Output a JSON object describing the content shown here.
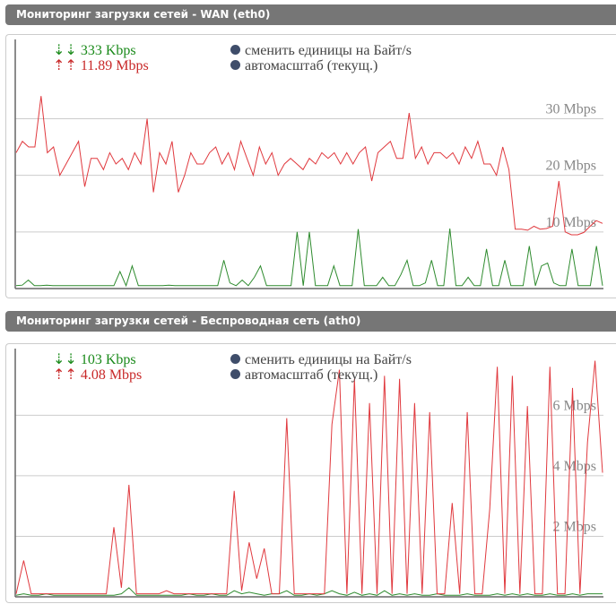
{
  "graphs": [
    {
      "title": "Мониторинг загрузки сетей - WAN (eth0)",
      "down_arrow": "⇣⇣",
      "down": "333 Kbps",
      "up_arrow": "⇡⇡",
      "up": "11.89 Mbps",
      "opt_units": "сменить единицы на Байт/s",
      "opt_scale": "автомасштаб (текущ.)",
      "grid": [
        "30 Mbps",
        "20 Mbps",
        "10 Mbps"
      ],
      "grid_values": [
        30,
        20,
        10
      ],
      "ymax": 44,
      "colors": {
        "up": "#e0393e",
        "down": "#2e8b2e"
      },
      "up_series": [
        24,
        26,
        25,
        25,
        34,
        24,
        25,
        20,
        22,
        24,
        26,
        18,
        23,
        23,
        21,
        24,
        22,
        23,
        21,
        24,
        22,
        30,
        17,
        24,
        22,
        26,
        17,
        20,
        24,
        22,
        22,
        24,
        25,
        22,
        24,
        21,
        26,
        23,
        20,
        25,
        22,
        24,
        20,
        22,
        23,
        22,
        21,
        23,
        22,
        24,
        23,
        24,
        22,
        24,
        22,
        24,
        25,
        19,
        24,
        25,
        26,
        23,
        23,
        31,
        23,
        25,
        22,
        24,
        24,
        23,
        24,
        22,
        25,
        23,
        26,
        22,
        22,
        20,
        25,
        21,
        10.5,
        10.5,
        10.3,
        11,
        10.5,
        10.6,
        11,
        19,
        10,
        9.5,
        9.5,
        9.9,
        11,
        12,
        11.5
      ],
      "down_series": [
        0.5,
        0.6,
        1.5,
        0.5,
        0.5,
        0.6,
        0.5,
        0.5,
        0.5,
        0.5,
        0.5,
        0.5,
        0.5,
        0.5,
        0.5,
        0.5,
        0.5,
        3,
        0.5,
        4,
        0.5,
        0.5,
        0.5,
        0.5,
        0.5,
        0.6,
        0.5,
        0.5,
        0.5,
        0.5,
        0.5,
        0.5,
        0.5,
        0.5,
        5,
        1,
        0.5,
        1.5,
        0.5,
        2,
        4,
        0.5,
        0.5,
        0.5,
        0.5,
        0.5,
        10,
        0.5,
        10,
        0.5,
        0.5,
        0.5,
        4,
        0.5,
        0.5,
        0.5,
        10.5,
        0.5,
        0.5,
        0.5,
        2,
        0.5,
        0.5,
        2.5,
        5,
        0.5,
        0.5,
        1,
        5,
        0.5,
        0.5,
        10.6,
        0.5,
        0.5,
        2,
        0.5,
        0.5,
        7,
        0.5,
        0.5,
        5,
        0.5,
        0.5,
        0.5,
        7.5,
        0.5,
        4,
        4.5,
        1,
        0.5,
        0.5,
        7,
        0.5,
        0.5,
        0.5,
        7.5,
        0.5
      ]
    },
    {
      "title": "Мониторинг загрузки сетей - Беспроводная сеть (ath0)",
      "down_arrow": "⇣⇣",
      "down": "103 Kbps",
      "up_arrow": "⇡⇡",
      "up": "4.08 Mbps",
      "opt_units": "сменить единицы на Байт/s",
      "opt_scale": "автомасштаб (текущ.)",
      "grid": [
        "6 Mbps",
        "4 Mbps",
        "2 Mbps"
      ],
      "grid_values": [
        6,
        4,
        2
      ],
      "ymax": 8.2,
      "colors": {
        "up": "#e0393e",
        "down": "#2e8b2e"
      },
      "up_series": [
        0.1,
        1.2,
        0.1,
        0.1,
        0.1,
        0.1,
        0.1,
        0.1,
        0.1,
        0.1,
        0.1,
        0.1,
        0.1,
        2.3,
        0.3,
        3.7,
        0.1,
        0.1,
        0.1,
        0.1,
        0.2,
        0.1,
        0.1,
        0.1,
        0.1,
        0.1,
        0.1,
        0.1,
        0.1,
        3.5,
        0.2,
        1.8,
        0.6,
        1.6,
        0.1,
        0.1,
        5.9,
        0.1,
        0.1,
        0.1,
        0.1,
        0.1,
        5.7,
        7.5,
        0.1,
        7.2,
        0.1,
        6.4,
        0.1,
        7.3,
        0.1,
        7.2,
        0.1,
        6.4,
        0.1,
        6.1,
        0.1,
        0.1,
        3.1,
        0.1,
        6.1,
        0.1,
        0.1,
        2.9,
        7.6,
        0.1,
        7.3,
        0.1,
        6.3,
        0.1,
        0.1,
        7.6,
        0.1,
        0.1,
        6.9,
        0.1,
        5.1,
        7.8,
        4.1
      ],
      "down_series": [
        0.05,
        0.1,
        0.05,
        0.05,
        0.1,
        0.05,
        0.05,
        0.05,
        0.05,
        0.05,
        0.05,
        0.05,
        0.05,
        0.05,
        0.1,
        0.3,
        0.05,
        0.05,
        0.05,
        0.05,
        0.05,
        0.05,
        0.05,
        0.1,
        0.05,
        0.05,
        0.1,
        0.05,
        0.05,
        0.2,
        0.1,
        0.15,
        0.1,
        0.05,
        0.1,
        0.1,
        0.2,
        0.05,
        0.05,
        0.1,
        0.05,
        0.1,
        0.2,
        0.1,
        0.05,
        0.15,
        0.05,
        0.1,
        0.05,
        0.2,
        0.05,
        0.1,
        0.05,
        0.1,
        0.05,
        0.05,
        0.1,
        0.05,
        0.05,
        0.05,
        0.1,
        0.05,
        0.05,
        0.05,
        0.1,
        0.05,
        0.1,
        0.05,
        0.1,
        0.05,
        0.05,
        0.1,
        0.05,
        0.05,
        0.1,
        0.05,
        0.1,
        0.1,
        0.1
      ]
    }
  ]
}
